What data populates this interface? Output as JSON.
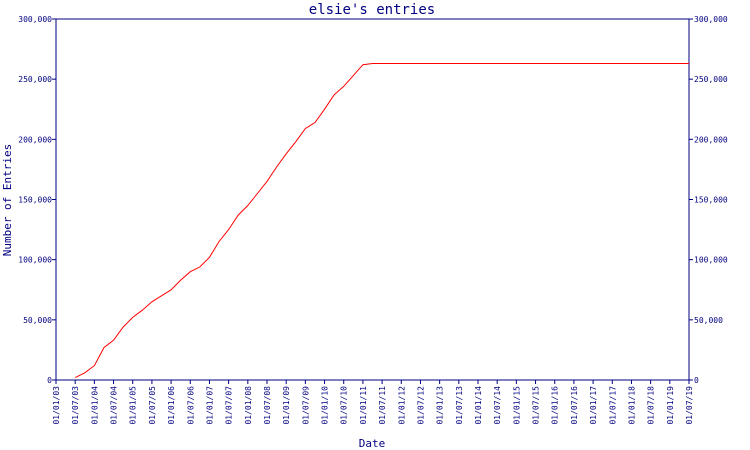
{
  "chart_data": {
    "type": "line",
    "title": "elsie's entries",
    "xlabel": "Date",
    "ylabel": "Number of Entries",
    "grid": false,
    "ylim": [
      0,
      300000
    ],
    "yticks": [
      0,
      50000,
      100000,
      150000,
      200000,
      250000,
      300000
    ],
    "ytick_labels": [
      "0",
      "50,000",
      "100,000",
      "150,000",
      "200,000",
      "250,000",
      "300,000"
    ],
    "xticks": [
      "01/01/03",
      "01/07/03",
      "01/01/04",
      "01/07/04",
      "01/01/05",
      "01/07/05",
      "01/01/06",
      "01/07/06",
      "01/01/07",
      "01/07/07",
      "01/01/08",
      "01/07/08",
      "01/01/09",
      "01/07/09",
      "01/01/10",
      "01/07/10",
      "01/01/11",
      "01/07/11",
      "01/01/12",
      "01/07/12",
      "01/01/13",
      "01/07/13",
      "01/01/14",
      "01/07/14",
      "01/01/15",
      "01/07/15",
      "01/01/16",
      "01/07/16",
      "01/01/17",
      "01/07/17",
      "01/01/18",
      "01/07/18",
      "01/01/19",
      "01/07/19"
    ],
    "colors": {
      "axis": "#000080",
      "series": "#ff0000"
    },
    "series": [
      {
        "x": [
          "01/07/03",
          "01/10/03",
          "01/01/04",
          "01/04/04",
          "01/07/04",
          "01/10/04",
          "01/01/05",
          "01/04/05",
          "01/07/05",
          "01/10/05",
          "01/01/06",
          "01/04/06",
          "01/07/06",
          "01/10/06",
          "01/01/07",
          "01/04/07",
          "01/07/07",
          "01/10/07",
          "01/01/08",
          "01/04/08",
          "01/07/08",
          "01/10/08",
          "01/01/09",
          "01/04/09",
          "01/07/09",
          "01/10/09",
          "01/01/10",
          "01/04/10",
          "01/07/10",
          "01/10/10",
          "01/01/11",
          "01/04/11",
          "01/07/11",
          "01/01/12",
          "01/01/13",
          "01/01/14",
          "01/01/15",
          "01/01/16",
          "01/01/17",
          "01/01/18",
          "01/01/19",
          "01/07/19"
        ],
        "y": [
          2000,
          6000,
          12000,
          27000,
          33000,
          44000,
          52000,
          58000,
          65000,
          70000,
          75000,
          83000,
          90000,
          94000,
          102000,
          115000,
          125000,
          137000,
          145000,
          155000,
          165000,
          177000,
          188000,
          198000,
          209000,
          214000,
          225000,
          237000,
          244000,
          253000,
          262000,
          263000,
          263000,
          263000,
          263000,
          263000,
          263000,
          263000,
          263000,
          263000,
          263000,
          263000
        ]
      }
    ]
  }
}
